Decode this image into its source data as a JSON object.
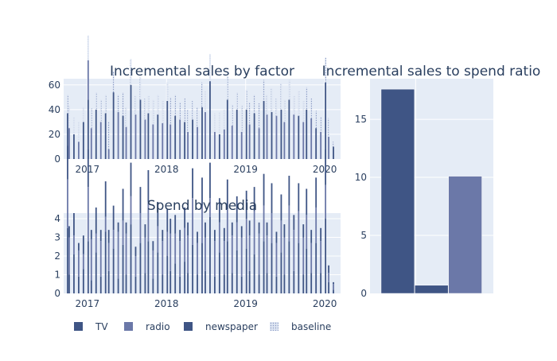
{
  "colors": {
    "TV": "#3F5585",
    "radio": "#6B78A8",
    "newspaper": "#3F5585",
    "baseline": "#B8C5E0",
    "text": "#2a3f5f"
  },
  "legend": [
    {
      "name": "TV",
      "color_key": "TV",
      "pattern": "solid"
    },
    {
      "name": "radio",
      "color_key": "radio",
      "pattern": "solid"
    },
    {
      "name": "newspaper",
      "color_key": "newspaper",
      "pattern": "solid"
    },
    {
      "name": "baseline",
      "color_key": "baseline",
      "pattern": "dotted"
    }
  ],
  "chart_data": [
    {
      "id": "incremental-sales",
      "type": "bar",
      "title": "Incremental sales by factor",
      "xlabel": "",
      "ylabel": "",
      "x_ticks": [
        "2017",
        "2018",
        "2019",
        "2020"
      ],
      "x_tick_positions": [
        0.25,
        1.25,
        2.25,
        3.25
      ],
      "x_range": [
        -0.05,
        3.45
      ],
      "y_ticks": [
        0,
        20,
        40,
        60
      ],
      "ylim": [
        0,
        65
      ],
      "grid": true,
      "x": [
        0.0,
        0.02,
        0.08,
        0.14,
        0.2,
        0.26,
        0.3,
        0.36,
        0.42,
        0.48,
        0.52,
        0.58,
        0.64,
        0.7,
        0.74,
        0.8,
        0.86,
        0.92,
        0.98,
        1.02,
        1.08,
        1.14,
        1.2,
        1.26,
        1.3,
        1.36,
        1.42,
        1.48,
        1.52,
        1.58,
        1.64,
        1.7,
        1.74,
        1.8,
        1.86,
        1.92,
        1.98,
        2.02,
        2.08,
        2.14,
        2.2,
        2.26,
        2.3,
        2.36,
        2.42,
        2.48,
        2.52,
        2.58,
        2.64,
        2.7,
        2.74,
        2.8,
        2.86,
        2.92,
        2.98,
        3.02,
        3.08,
        3.14,
        3.2,
        3.26,
        3.3,
        3.36
      ],
      "series": [
        {
          "name": "TV",
          "color_key": "TV",
          "values": [
            37,
            0,
            20,
            0,
            30,
            48,
            0,
            40,
            0,
            37,
            0,
            54,
            0,
            35,
            0,
            60,
            0,
            48,
            0,
            37,
            0,
            36,
            0,
            47,
            0,
            35,
            0,
            30,
            0,
            32,
            0,
            42,
            0,
            63,
            0,
            20,
            0,
            48,
            0,
            40,
            0,
            40,
            0,
            37,
            0,
            47,
            0,
            38,
            0,
            40,
            0,
            48,
            0,
            35,
            0,
            40,
            0,
            25,
            0,
            62,
            0,
            10
          ]
        },
        {
          "name": "radio",
          "color_key": "radio",
          "values": [
            0,
            25,
            0,
            14,
            0,
            32,
            25,
            0,
            30,
            0,
            8,
            0,
            38,
            0,
            26,
            0,
            36,
            0,
            32,
            0,
            28,
            0,
            29,
            0,
            28,
            0,
            32,
            0,
            22,
            0,
            26,
            0,
            38,
            0,
            22,
            0,
            24,
            0,
            27,
            0,
            22,
            0,
            28,
            0,
            25,
            0,
            36,
            0,
            35,
            0,
            30,
            0,
            36,
            0,
            30,
            0,
            33,
            0,
            22,
            0,
            18,
            0
          ]
        },
        {
          "name": "newspaper",
          "color_key": "newspaper",
          "values": [
            0,
            0,
            0,
            0,
            0,
            0,
            0,
            0,
            0,
            0,
            0,
            0,
            0,
            0,
            0,
            0,
            0,
            0,
            0,
            0,
            0,
            0,
            0,
            0,
            0,
            0,
            0,
            0,
            0,
            0,
            0,
            0,
            0,
            0,
            0,
            0,
            0,
            0,
            0,
            0,
            0,
            0,
            0,
            0,
            0,
            0,
            0,
            0,
            0,
            0,
            0,
            0,
            0,
            0,
            0,
            0,
            0,
            0,
            0,
            0,
            0,
            0
          ]
        },
        {
          "name": "baseline",
          "color_key": "baseline",
          "values": [
            15,
            18,
            14,
            16,
            12,
            20,
            16,
            14,
            18,
            15,
            22,
            17,
            14,
            19,
            16,
            21,
            15,
            18,
            17,
            14,
            20,
            16,
            18,
            15,
            22,
            17,
            14,
            19,
            18,
            15,
            16,
            20,
            17,
            22,
            15,
            18,
            16,
            19,
            17,
            14,
            21,
            16,
            18,
            15,
            20,
            17,
            16,
            19,
            14,
            21,
            18,
            16,
            15,
            20,
            17,
            18,
            16,
            14,
            12,
            20,
            15,
            4
          ]
        }
      ]
    },
    {
      "id": "spend-by-media",
      "type": "bar",
      "title": "Spend by media",
      "xlabel": "",
      "ylabel": "",
      "x_ticks": [
        "2017",
        "2018",
        "2019",
        "2020"
      ],
      "x_tick_positions": [
        0.25,
        1.25,
        2.25,
        3.25
      ],
      "x_range": [
        -0.05,
        3.45
      ],
      "y_ticks": [
        0,
        1,
        2,
        3,
        4
      ],
      "ylim": [
        0,
        4.3
      ],
      "grid": true,
      "x": [
        0.0,
        0.02,
        0.08,
        0.14,
        0.2,
        0.26,
        0.3,
        0.36,
        0.42,
        0.48,
        0.52,
        0.58,
        0.64,
        0.7,
        0.74,
        0.8,
        0.86,
        0.92,
        0.98,
        1.02,
        1.08,
        1.14,
        1.2,
        1.26,
        1.3,
        1.36,
        1.42,
        1.48,
        1.52,
        1.58,
        1.64,
        1.7,
        1.74,
        1.8,
        1.86,
        1.92,
        1.98,
        2.02,
        2.08,
        2.14,
        2.2,
        2.26,
        2.3,
        2.36,
        2.42,
        2.48,
        2.52,
        2.58,
        2.64,
        2.7,
        2.74,
        2.8,
        2.86,
        2.92,
        2.98,
        3.02,
        3.08,
        3.14,
        3.2,
        3.26,
        3.3,
        3.36
      ],
      "series": [
        {
          "name": "TV",
          "color_key": "TV",
          "values": [
            3.5,
            1.0,
            2.1,
            0.9,
            1.3,
            2.8,
            0.7,
            2.2,
            0.9,
            3.3,
            1.2,
            2.4,
            0.8,
            2.6,
            1.0,
            3.7,
            0.9,
            2.7,
            1.1,
            2.8,
            0.8,
            2.2,
            1.0,
            2.0,
            1.2,
            1.6,
            0.9,
            1.7,
            1.1,
            2.6,
            1.0,
            2.7,
            1.2,
            4.1,
            0.9,
            2.2,
            1.0,
            2.8,
            1.1,
            2.3,
            0.9,
            2.4,
            1.2,
            2.1,
            1.0,
            2.8,
            1.1,
            2.7,
            0.9,
            2.2,
            1.0,
            2.8,
            1.2,
            2.7,
            1.0,
            2.4,
            1.1,
            2.7,
            1.1,
            4.0,
            0.6,
            0.2
          ]
        },
        {
          "name": "radio",
          "color_key": "radio",
          "values": [
            2.6,
            2.0,
            1.0,
            1.4,
            0.8,
            2.9,
            2.2,
            1.0,
            1.9,
            0.8,
            1.5,
            1.0,
            2.5,
            1.3,
            2.2,
            1.5,
            1.1,
            1.6,
            1.9,
            2.1,
            1.5,
            1.4,
            1.8,
            1.3,
            2.0,
            1.6,
            1.9,
            1.8,
            2.0,
            2.5,
            1.7,
            2.0,
            1.8,
            1.0,
            1.9,
            1.6,
            1.8,
            1.7,
            2.0,
            1.5,
            2.1,
            1.6,
            1.9,
            2.3,
            2.2,
            1.9,
            2.0,
            1.6,
            1.8,
            1.7,
            2.0,
            1.9,
            2.2,
            1.7,
            2.0,
            1.8,
            1.6,
            1.9,
            1.7,
            1.8,
            0.5,
            0.3
          ]
        },
        {
          "name": "newspaper",
          "color_key": "newspaper",
          "values": [
            1.8,
            0.6,
            1.2,
            0.4,
            1.0,
            2.0,
            0.5,
            1.4,
            0.6,
            1.9,
            0.7,
            1.3,
            0.5,
            1.7,
            0.6,
            1.8,
            0.5,
            1.4,
            0.7,
            1.7,
            0.5,
            1.3,
            0.6,
            1.2,
            0.8,
            1.0,
            0.6,
            1.1,
            0.7,
            1.6,
            0.6,
            1.5,
            0.8,
            1.9,
            0.6,
            1.3,
            0.7,
            1.6,
            0.7,
            1.4,
            0.6,
            1.5,
            0.8,
            1.3,
            0.6,
            1.7,
            0.7,
            1.6,
            0.6,
            1.4,
            0.7,
            1.6,
            0.8,
            1.5,
            0.7,
            1.4,
            0.7,
            1.6,
            0.7,
            1.9,
            0.4,
            0.1
          ]
        },
        {
          "name": "baseline",
          "color_key": "baseline",
          "values": [
            0,
            0,
            0,
            0,
            0,
            0,
            0,
            0,
            0,
            0,
            0,
            0,
            0,
            0,
            0,
            0,
            0,
            0,
            0,
            0,
            0,
            0,
            0,
            0,
            0,
            0,
            0,
            0,
            0,
            0,
            0,
            0,
            0,
            0,
            0,
            0,
            0,
            0,
            0,
            0,
            0,
            0,
            0,
            0,
            0,
            0,
            0,
            0,
            0,
            0,
            0,
            0,
            0,
            0,
            0,
            0,
            0,
            0,
            0,
            0,
            0,
            0
          ]
        }
      ]
    },
    {
      "id": "sales-to-spend-ratio",
      "type": "bar",
      "title": "Incremental sales to spend ratio",
      "xlabel": "",
      "ylabel": "",
      "categories": [
        "TV",
        "newspaper",
        "radio"
      ],
      "color_keys": [
        "TV",
        "newspaper",
        "radio"
      ],
      "values": [
        17.6,
        0.7,
        10.1
      ],
      "y_ticks": [
        0,
        5,
        10,
        15
      ],
      "ylim": [
        0,
        18.5
      ],
      "show_x_tick_labels": false,
      "grid": true
    }
  ]
}
